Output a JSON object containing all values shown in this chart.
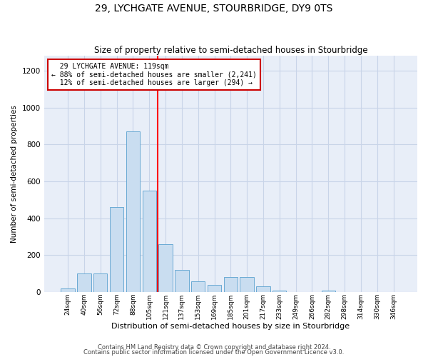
{
  "title": "29, LYCHGATE AVENUE, STOURBRIDGE, DY9 0TS",
  "subtitle": "Size of property relative to semi-detached houses in Stourbridge",
  "xlabel": "Distribution of semi-detached houses by size in Stourbridge",
  "ylabel": "Number of semi-detached properties",
  "footnote1": "Contains HM Land Registry data © Crown copyright and database right 2024.",
  "footnote2": "Contains public sector information licensed under the Open Government Licence v3.0.",
  "categories": [
    "24sqm",
    "40sqm",
    "56sqm",
    "72sqm",
    "88sqm",
    "105sqm",
    "121sqm",
    "137sqm",
    "153sqm",
    "169sqm",
    "185sqm",
    "201sqm",
    "217sqm",
    "233sqm",
    "249sqm",
    "266sqm",
    "282sqm",
    "298sqm",
    "314sqm",
    "330sqm",
    "346sqm"
  ],
  "values": [
    20,
    100,
    100,
    460,
    870,
    550,
    260,
    120,
    60,
    40,
    80,
    80,
    30,
    10,
    0,
    0,
    10,
    0,
    0,
    0,
    0
  ],
  "bar_color": "#c9ddf0",
  "bar_edge_color": "#6aaad4",
  "grid_color": "#c8d4e8",
  "background_color": "#e8eef8",
  "property_label": "29 LYCHGATE AVENUE: 119sqm",
  "pct_smaller": 88,
  "n_smaller": 2241,
  "pct_larger": 12,
  "n_larger": 294,
  "annotation_box_color": "#cc0000",
  "ylim": [
    0,
    1280
  ],
  "yticks": [
    0,
    200,
    400,
    600,
    800,
    1000,
    1200
  ]
}
